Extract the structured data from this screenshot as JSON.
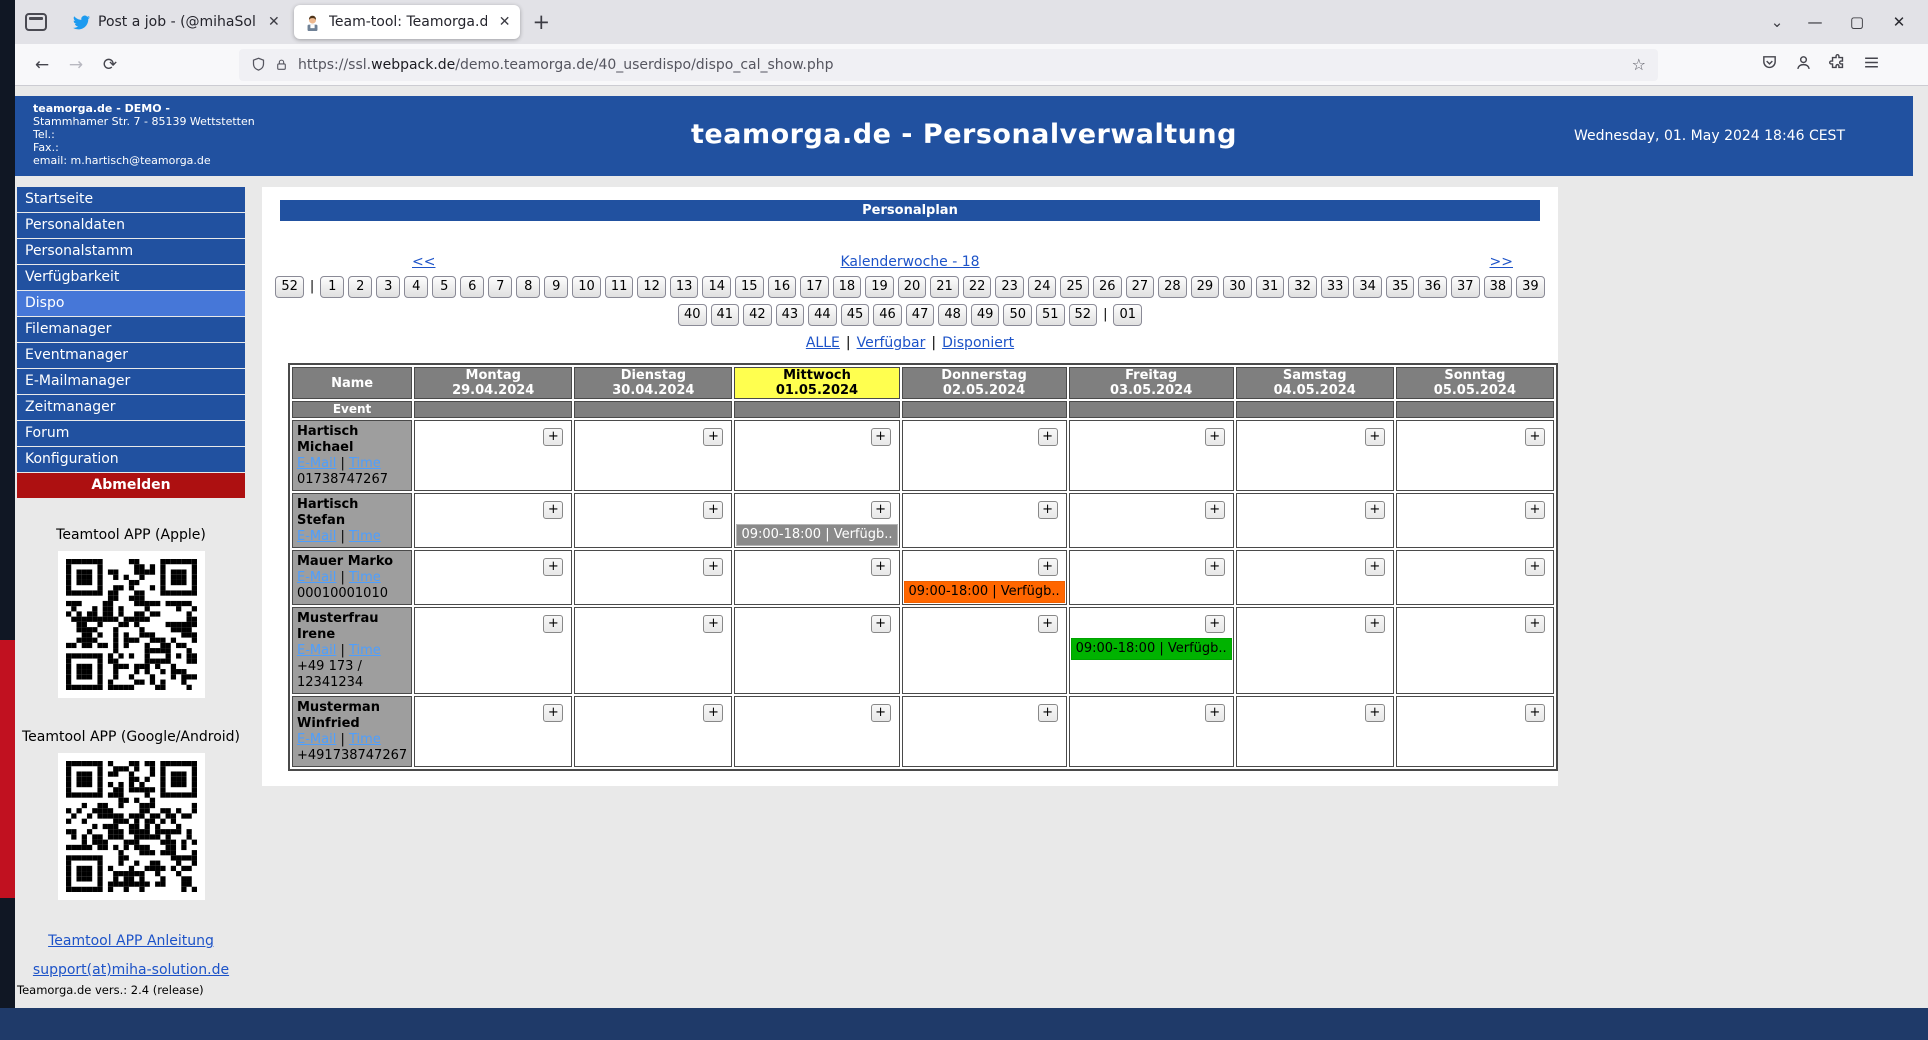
{
  "browser": {
    "tabs": [
      {
        "title": "Post a job - (@mihaSolutions) |",
        "icon": "twitter-icon"
      },
      {
        "title": "Team-tool: Teamorga.de Person",
        "icon": "person-icon"
      }
    ],
    "new_tab": "+",
    "url": {
      "prefix": "https://ssl.",
      "domain": "webpack.de",
      "path": "/demo.teamorga.de/40_userdispo/dispo_cal_show.php"
    }
  },
  "header": {
    "company": [
      "teamorga.de - DEMO -",
      "Stammhamer Str. 7 - 85139 Wettstetten",
      "Tel.:",
      "Fax.:",
      "email: m.hartisch@teamorga.de"
    ],
    "title": "teamorga.de - Personalverwaltung",
    "datetime": "Wednesday, 01. May 2024 18:46 CEST"
  },
  "sidebar": {
    "items": [
      "Startseite",
      "Personaldaten",
      "Personalstamm",
      "Verfügbarkeit",
      "Dispo",
      "Filemanager",
      "Eventmanager",
      "E-Mailmanager",
      "Zeitmanager",
      "Forum",
      "Konfiguration"
    ],
    "active_item": "Dispo",
    "logout": "Abmelden",
    "qr_apple_label": "Teamtool APP (Apple)",
    "qr_android_label": "Teamtool APP (Google/Android)",
    "manual_link": "Teamtool APP Anleitung",
    "support_link": "support(at)miha-solution.de",
    "version": "Teamorga.de vers.: 2.4 (release)"
  },
  "plan": {
    "title": "Personalplan",
    "prev": "<<",
    "next": ">>",
    "week_label": "Kalenderwoche - 18",
    "weeks_row1": [
      "52",
      "|",
      "1",
      "2",
      "3",
      "4",
      "5",
      "6",
      "7",
      "8",
      "9",
      "10",
      "11",
      "12",
      "13",
      "14",
      "15",
      "16",
      "17",
      "18",
      "19",
      "20",
      "21",
      "22",
      "23",
      "24",
      "25",
      "26",
      "27",
      "28",
      "29",
      "30",
      "31",
      "32",
      "33",
      "34",
      "35",
      "36",
      "37",
      "38",
      "39"
    ],
    "weeks_row2": [
      "40",
      "41",
      "42",
      "43",
      "44",
      "45",
      "46",
      "47",
      "48",
      "49",
      "50",
      "51",
      "52",
      "|",
      "01"
    ],
    "filters": [
      "ALLE",
      "Verfügbar",
      "Disponiert"
    ],
    "table": {
      "name_header": "Name",
      "event_header": "Event",
      "add_label": "+",
      "days": [
        {
          "name": "Montag",
          "date": "29.04.2024"
        },
        {
          "name": "Dienstag",
          "date": "30.04.2024"
        },
        {
          "name": "Mittwoch",
          "date": "01.05.2024",
          "today": true
        },
        {
          "name": "Donnerstag",
          "date": "02.05.2024"
        },
        {
          "name": "Freitag",
          "date": "03.05.2024"
        },
        {
          "name": "Samstag",
          "date": "04.05.2024"
        },
        {
          "name": "Sonntag",
          "date": "05.05.2024"
        }
      ],
      "rows": [
        {
          "name": "Hartisch Michael",
          "links": [
            "E-Mail",
            "Time"
          ],
          "phone": "01738747267",
          "events": []
        },
        {
          "name": "Hartisch Stefan",
          "links": [
            "E-Mail",
            "Time"
          ],
          "phone": "",
          "events": [
            {
              "day": 2,
              "text": "09:00-18:00 | Verfügb..",
              "status": "gray"
            }
          ]
        },
        {
          "name": "Mauer Marko",
          "links": [
            "E-Mail",
            "Time"
          ],
          "phone": "00010001010",
          "events": [
            {
              "day": 3,
              "text": "09:00-18:00 | Verfügb..",
              "status": "orange"
            }
          ]
        },
        {
          "name": "Musterfrau Irene",
          "links": [
            "E-Mail",
            "Time"
          ],
          "phone": "+49 173 / 12341234",
          "events": [
            {
              "day": 4,
              "text": "09:00-18:00 | Verfügb..",
              "status": "green"
            }
          ]
        },
        {
          "name": "Musterman Winfried",
          "links": [
            "E-Mail",
            "Time"
          ],
          "phone": "+491738747267",
          "events": []
        }
      ]
    }
  },
  "colors": {
    "accent_blue": "#2151a0",
    "active_blue": "#4677d8",
    "logout_red": "#ad1011",
    "today_yellow": "#ffff4f",
    "status_gray": "#8a8a8a",
    "status_orange": "#ff6600",
    "status_green": "#00b300"
  }
}
